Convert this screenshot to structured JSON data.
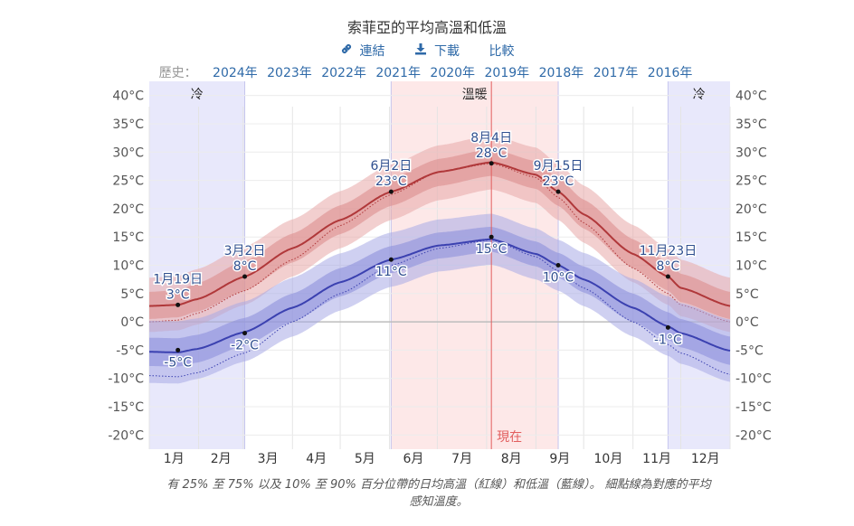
{
  "title": "索菲亞的平均高溫和低溫",
  "actions": {
    "link_label": "連結",
    "link_icon": "link-icon",
    "download_label": "下載",
    "download_icon": "download-icon",
    "compare_label": "比較"
  },
  "history": {
    "label": "歷史：",
    "years": [
      "2024年",
      "2023年",
      "2022年",
      "2021年",
      "2020年",
      "2019年",
      "2018年",
      "2017年",
      "2016年"
    ]
  },
  "caption": {
    "line1": "有 25% 至 75% 以及 10% 至 90% 百分位帶的日均高溫（紅線）和低溫（藍線）。 細點線為對應的平均",
    "line2": "感知溫度。"
  },
  "chart_data": {
    "type": "line",
    "x_unit": "day_of_year",
    "ylim": [
      -22.5,
      42.5
    ],
    "yticks": [
      "40°C",
      "35°C",
      "30°C",
      "25°C",
      "20°C",
      "15°C",
      "10°C",
      "5°C",
      "0°C",
      "-5°C",
      "-10°C",
      "-15°C",
      "-20°C"
    ],
    "ytick_values": [
      40,
      35,
      30,
      25,
      20,
      15,
      10,
      5,
      0,
      -5,
      -10,
      -15,
      -20
    ],
    "months": [
      "1月",
      "2月",
      "3月",
      "4月",
      "5月",
      "6月",
      "7月",
      "8月",
      "9月",
      "10月",
      "11月",
      "12月"
    ],
    "seasons": [
      {
        "label": "冷",
        "start_day": 1,
        "end_day": 61,
        "color": "#e8e8fb"
      },
      {
        "label": "溫暖",
        "start_day": 153,
        "end_day": 258,
        "color": "#fde8e8"
      },
      {
        "label": "冷",
        "start_day": 327,
        "end_day": 366,
        "color": "#e8e8fb"
      }
    ],
    "now": {
      "label": "現在",
      "day": 216
    },
    "high": {
      "name": "高溫",
      "color": "#b0383a",
      "days": [
        1,
        19,
        31,
        61,
        91,
        121,
        153,
        183,
        216,
        244,
        258,
        274,
        305,
        327,
        335,
        366
      ],
      "values": [
        2.8,
        3,
        4,
        8,
        13,
        18,
        23,
        26.5,
        28.2,
        26,
        23,
        19,
        12,
        8,
        6,
        2.8
      ],
      "p25": [
        0.5,
        0.8,
        1.8,
        5.5,
        10.5,
        15.5,
        20.5,
        24,
        25.8,
        23.5,
        20.5,
        16.5,
        9.5,
        5.5,
        3.5,
        0.5
      ],
      "p75": [
        5.3,
        5.6,
        6.8,
        10.8,
        15.6,
        20.6,
        25.4,
        28.8,
        30.6,
        28.4,
        25.4,
        21.6,
        14.6,
        10.5,
        8.5,
        5.3
      ],
      "p10": [
        -1.8,
        -1.5,
        -0.5,
        3,
        8,
        13,
        18,
        21.5,
        23.4,
        21,
        18,
        14,
        7,
        3,
        1,
        -1.8
      ],
      "p90": [
        7.8,
        8.1,
        9.3,
        13.3,
        18.1,
        23.1,
        27.8,
        31.2,
        33,
        30.8,
        27.9,
        24.1,
        17.1,
        13,
        11,
        7.8
      ],
      "feels": [
        0,
        0.3,
        1.5,
        5.5,
        11,
        17,
        22.5,
        26.5,
        28,
        25.5,
        22,
        17.5,
        9.5,
        5,
        3,
        0
      ]
    },
    "low": {
      "name": "低溫",
      "color": "#3b41b0",
      "days": [
        1,
        19,
        31,
        61,
        91,
        121,
        153,
        183,
        216,
        244,
        258,
        274,
        305,
        327,
        335,
        366
      ],
      "values": [
        -5.3,
        -5.4,
        -4.8,
        -1.8,
        2.5,
        7,
        11,
        13.5,
        14.6,
        12,
        10,
        7.5,
        2.5,
        -0.8,
        -2,
        -5.1
      ],
      "p25": [
        -7.8,
        -7.9,
        -7.2,
        -4.2,
        0,
        4.5,
        8.6,
        11.2,
        12.4,
        9.8,
        7.8,
        5.2,
        0,
        -3.2,
        -4.5,
        -7.6
      ],
      "p75": [
        -2.8,
        -2.9,
        -2.3,
        0.7,
        5,
        9.5,
        13.4,
        15.8,
        16.8,
        14.2,
        12.2,
        9.8,
        5,
        1.7,
        0.5,
        -2.6
      ],
      "p10": [
        -10.8,
        -10.9,
        -10.1,
        -7,
        -2.6,
        2,
        6.2,
        8.9,
        10.1,
        7.5,
        5.5,
        2.8,
        -2.6,
        -6,
        -7.4,
        -10.6
      ],
      "p90": [
        0.2,
        0.1,
        0.6,
        3.6,
        7.8,
        12.1,
        15.8,
        18.1,
        19.1,
        16.5,
        14.5,
        12.2,
        7.6,
        4.5,
        3.3,
        0.4
      ],
      "feels": [
        -9.5,
        -9.7,
        -9,
        -5.5,
        0,
        5,
        10,
        13,
        14.5,
        11.5,
        9,
        6,
        0,
        -4,
        -5.5,
        -9.3
      ]
    },
    "annotations": [
      {
        "series": "high",
        "day": 19,
        "value": 3,
        "date": "1月19日",
        "temp": "3°C",
        "pos": "above"
      },
      {
        "series": "high",
        "day": 61,
        "value": 8,
        "date": "3月2日",
        "temp": "8°C",
        "pos": "above"
      },
      {
        "series": "high",
        "day": 153,
        "value": 23,
        "date": "6月2日",
        "temp": "23°C",
        "pos": "above"
      },
      {
        "series": "high",
        "day": 216,
        "value": 28,
        "date": "8月4日",
        "temp": "28°C",
        "pos": "above"
      },
      {
        "series": "high",
        "day": 258,
        "value": 23,
        "date": "9月15日",
        "temp": "23°C",
        "pos": "above"
      },
      {
        "series": "high",
        "day": 327,
        "value": 8,
        "date": "11月23日",
        "temp": "8°C",
        "pos": "above"
      },
      {
        "series": "low",
        "day": 19,
        "value": -5,
        "date": "",
        "temp": "-5°C",
        "pos": "below"
      },
      {
        "series": "low",
        "day": 61,
        "value": -2,
        "date": "",
        "temp": "-2°C",
        "pos": "below"
      },
      {
        "series": "low",
        "day": 153,
        "value": 11,
        "date": "",
        "temp": "11°C",
        "pos": "below"
      },
      {
        "series": "low",
        "day": 216,
        "value": 15,
        "date": "",
        "temp": "15°C",
        "pos": "below"
      },
      {
        "series": "low",
        "day": 258,
        "value": 10,
        "date": "",
        "temp": "10°C",
        "pos": "below"
      },
      {
        "series": "low",
        "day": 327,
        "value": -1,
        "date": "",
        "temp": "-1°C",
        "pos": "below"
      }
    ],
    "grid": true
  }
}
